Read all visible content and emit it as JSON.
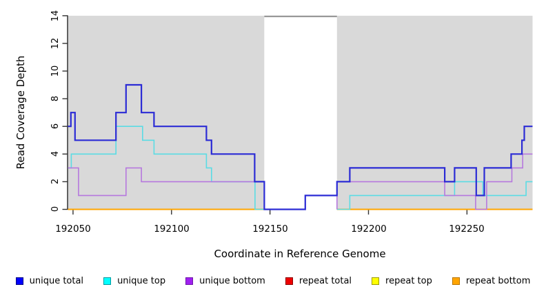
{
  "chart_data": {
    "type": "line",
    "subtype": "step-coverage",
    "title": "",
    "xlabel": "Coordinate in Reference Genome",
    "ylabel": "Read Coverage Depth",
    "xlim": [
      192047.4,
      192283.3
    ],
    "ylim": [
      0,
      14
    ],
    "grid": false,
    "panel_bg": "#D9D9D9",
    "axis_color": "#333333",
    "x_ticks": [
      "192050",
      "192100",
      "192150",
      "192200",
      "192250"
    ],
    "x_tick_values": [
      192050,
      192100,
      192150,
      192200,
      192250
    ],
    "y_ticks": [
      "0",
      "2",
      "4",
      "6",
      "8",
      "10",
      "12",
      "14"
    ],
    "y_tick_values": [
      0,
      2,
      4,
      6,
      8,
      10,
      12,
      14
    ],
    "masked_region": {
      "start": 192147.1,
      "end": 192184.0,
      "fill": "#FFFFFF",
      "top_border": "#8C8C8C"
    },
    "series": [
      {
        "name": "repeat total",
        "color": "#DD0000",
        "width": 1.6,
        "segments": [
          [
            [
              192047.4,
              0
            ],
            [
              192147.1,
              0
            ]
          ],
          [
            [
              192184.0,
              0
            ],
            [
              192283.3,
              0
            ]
          ]
        ]
      },
      {
        "name": "repeat top",
        "color": "#FFFF00",
        "width": 1.6,
        "segments": [
          [
            [
              192047.4,
              0
            ],
            [
              192147.1,
              0
            ]
          ],
          [
            [
              192184.0,
              0
            ],
            [
              192283.3,
              0
            ]
          ]
        ]
      },
      {
        "name": "repeat bottom",
        "color": "#FFA500",
        "width": 2.0,
        "segments": [
          [
            [
              192047.4,
              0
            ],
            [
              192147.1,
              0
            ]
          ],
          [
            [
              192184.0,
              0
            ],
            [
              192283.3,
              0
            ]
          ]
        ]
      },
      {
        "name": "unique top",
        "color": "#5ADCE4",
        "width": 1.6,
        "segments": [
          [
            [
              192047.4,
              3
            ],
            [
              192049.1,
              4
            ],
            [
              192071.8,
              6
            ],
            [
              192085.3,
              5
            ],
            [
              192091.1,
              4
            ],
            [
              192117.7,
              3
            ],
            [
              192120.3,
              2
            ],
            [
              192142.4,
              0
            ],
            [
              192147.1,
              0
            ]
          ],
          [
            [
              192184.0,
              0
            ],
            [
              192190.5,
              1
            ],
            [
              192243.7,
              2
            ],
            [
              192258.1,
              1
            ],
            [
              192280.0,
              2
            ],
            [
              192283.3,
              2
            ]
          ]
        ]
      },
      {
        "name": "unique bottom",
        "color": "#B678DE",
        "width": 1.6,
        "segments": [
          [
            [
              192047.4,
              3
            ],
            [
              192052.8,
              1
            ],
            [
              192076.9,
              3
            ],
            [
              192084.7,
              2
            ],
            [
              192147.1,
              0
            ]
          ],
          [
            [
              192184.0,
              0
            ],
            [
              192184.0,
              2
            ],
            [
              192238.7,
              1
            ],
            [
              192254.4,
              0
            ],
            [
              192260.0,
              2
            ],
            [
              192272.8,
              3
            ],
            [
              192278.3,
              4
            ],
            [
              192283.3,
              4
            ]
          ]
        ]
      },
      {
        "name": "unique total",
        "color": "#2B2BD5",
        "width": 2.2,
        "segments": [
          [
            [
              192047.4,
              6
            ],
            [
              192048.9,
              7
            ],
            [
              192051.0,
              5
            ],
            [
              192071.8,
              7
            ],
            [
              192076.9,
              9
            ],
            [
              192084.7,
              7
            ],
            [
              192091.1,
              6
            ],
            [
              192117.7,
              5
            ],
            [
              192120.3,
              4
            ],
            [
              192142.2,
              2
            ],
            [
              192147.1,
              0
            ],
            [
              192167.9,
              1
            ],
            [
              192184.0,
              2
            ],
            [
              192190.5,
              3
            ],
            [
              192238.7,
              2
            ],
            [
              192243.7,
              3
            ],
            [
              192254.7,
              1
            ],
            [
              192258.8,
              3
            ],
            [
              192272.4,
              4
            ],
            [
              192277.9,
              5
            ],
            [
              192279.1,
              6
            ],
            [
              192283.3,
              6
            ]
          ]
        ]
      }
    ],
    "legend": [
      {
        "label": "unique total",
        "fill": "#0000FF",
        "border": "#000080"
      },
      {
        "label": "unique top",
        "fill": "#00FFFF",
        "border": "#00999F"
      },
      {
        "label": "unique bottom",
        "fill": "#A020F0",
        "border": "#6E16A8"
      },
      {
        "label": "repeat total",
        "fill": "#EE0000",
        "border": "#8B0000"
      },
      {
        "label": "repeat top",
        "fill": "#FFFF00",
        "border": "#9B9B00"
      },
      {
        "label": "repeat bottom",
        "fill": "#FFA500",
        "border": "#B87400"
      }
    ],
    "legend_position": "bottom"
  }
}
